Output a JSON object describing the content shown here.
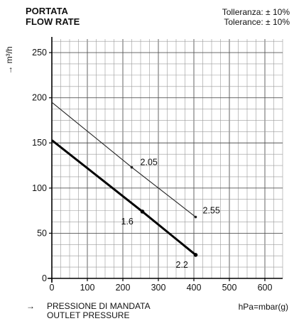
{
  "header": {
    "title_it": "PORTATA",
    "title_en": "FLOW RATE",
    "tolerance_it": "Tolleranza: ± 10%",
    "tolerance_en": "Tolerance: ± 10%"
  },
  "chart_data": {
    "type": "line",
    "ylabel": "→ m³/h",
    "xlabel_it": "PRESSIONE DI MANDATA",
    "xlabel_en": "OUTLET PRESSURE",
    "xunit": "hPa=mbar(g)",
    "xlim": [
      0,
      650
    ],
    "ylim": [
      0,
      265
    ],
    "xticks": [
      0,
      100,
      200,
      300,
      400,
      500,
      600
    ],
    "yticks": [
      0,
      50,
      100,
      150,
      200,
      250
    ],
    "grid": true,
    "series": [
      {
        "name": "",
        "style": "thin",
        "color": "#222222",
        "x": [
          0,
          225,
          405
        ],
        "y": [
          195,
          123,
          68
        ],
        "labels": [
          {
            "at": 1,
            "text": "2.05"
          },
          {
            "at": 2,
            "text": "2.55"
          }
        ]
      },
      {
        "name": "",
        "style": "bold",
        "color": "#000000",
        "x": [
          0,
          255,
          405
        ],
        "y": [
          153,
          74,
          26
        ],
        "labels": [
          {
            "at": 1,
            "text": "1.6"
          },
          {
            "at": 2,
            "text": "2.2"
          }
        ]
      }
    ]
  }
}
